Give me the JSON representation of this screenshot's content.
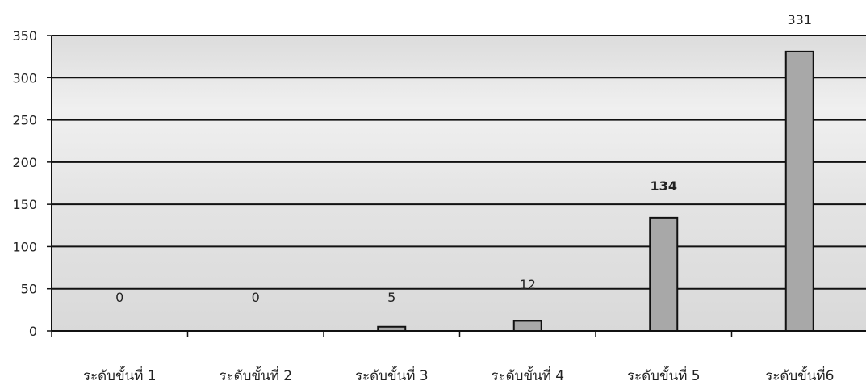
{
  "chart_data": {
    "type": "bar",
    "title": "",
    "xlabel": "",
    "ylabel": "",
    "categories": [
      "ระดับขั้นที่ 1",
      "ระดับขั้นที่ 2",
      "ระดับขั้นที่ 3",
      "ระดับขั้นที่ 4",
      "ระดับขั้นที่ 5",
      "ระดับขั้นที่6"
    ],
    "values": [
      0,
      0,
      5,
      12,
      134,
      331
    ],
    "data_labels": [
      "0",
      "0",
      "5",
      "12",
      "134",
      "331"
    ],
    "ylim": [
      0,
      350
    ],
    "yticks": [
      0,
      50,
      100,
      150,
      200,
      250,
      300,
      350
    ],
    "grid": true,
    "legend": "none",
    "colors": {
      "bar_fill": "#a8a8a8",
      "bar_stroke": "#111111",
      "plot_background": "#e3e3e3",
      "gridline": "#111111"
    }
  }
}
